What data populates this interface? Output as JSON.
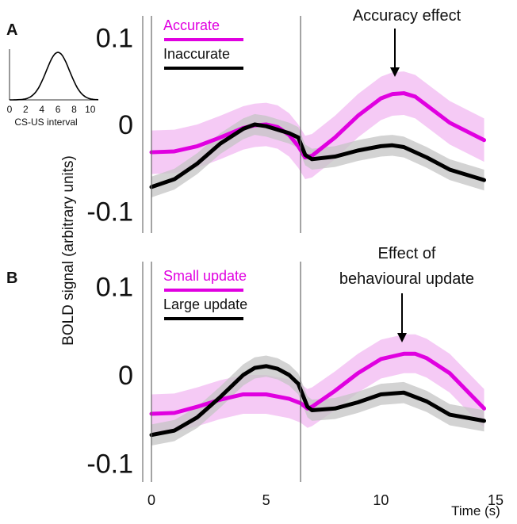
{
  "panels_label_a": "A",
  "panels_label_b": "B",
  "ylabel": "BOLD signal (arbitrary units)",
  "xlabel": "Time (s)",
  "inset": {
    "xlabel": "CS-US interval",
    "ticks": [
      "0",
      "2",
      "4",
      "6",
      "8",
      "10"
    ]
  },
  "colors": {
    "magenta": "#e000e0",
    "magenta_band": "#f2b8f2",
    "black": "#000000",
    "gray_band": "#c4c4c4"
  },
  "chart_data": [
    {
      "type": "line",
      "panel": "A",
      "annotation": "Accuracy effect",
      "yticks": [
        "0.1",
        "0",
        "-0.1"
      ],
      "ylim": [
        -0.115,
        0.115
      ],
      "xlim": [
        -0.2,
        14.5
      ],
      "vlines": [
        0,
        6.5
      ],
      "series": [
        {
          "name": "Accurate",
          "color": "#e000e0",
          "x": [
            0,
            1,
            2,
            3,
            4,
            4.5,
            5,
            5.5,
            6,
            6.4,
            6.7,
            7,
            8,
            9,
            10,
            10.5,
            11,
            11.5,
            12,
            13,
            14.5
          ],
          "values": [
            -0.032,
            -0.031,
            -0.025,
            -0.015,
            -0.004,
            -0.001,
            0.0,
            -0.003,
            -0.012,
            -0.025,
            -0.038,
            -0.036,
            -0.015,
            0.01,
            0.03,
            0.035,
            0.036,
            0.032,
            0.022,
            0.002,
            -0.018
          ],
          "band": 0.025
        },
        {
          "name": "Inaccurate",
          "color": "#000000",
          "x": [
            0,
            1,
            2,
            3,
            4,
            4.5,
            5,
            5.5,
            6,
            6.4,
            6.7,
            7,
            8,
            9,
            10,
            10.5,
            11,
            12,
            13,
            14.5
          ],
          "values": [
            -0.072,
            -0.063,
            -0.045,
            -0.022,
            -0.005,
            0.0,
            -0.002,
            -0.006,
            -0.01,
            -0.015,
            -0.035,
            -0.04,
            -0.037,
            -0.03,
            -0.025,
            -0.024,
            -0.026,
            -0.038,
            -0.052,
            -0.064
          ],
          "band": 0.012
        }
      ]
    },
    {
      "type": "line",
      "panel": "B",
      "annotation": "Effect of\nbehavioural update",
      "yticks": [
        "0.1",
        "0",
        "-0.1"
      ],
      "ylim": [
        -0.115,
        0.115
      ],
      "xlim": [
        -0.2,
        14.5
      ],
      "vlines": [
        0,
        6.5
      ],
      "series": [
        {
          "name": "Small update",
          "color": "#e000e0",
          "x": [
            0,
            1,
            2,
            3,
            4,
            5,
            6,
            6.5,
            6.8,
            7,
            8,
            9,
            10,
            11,
            11.5,
            12,
            13,
            14.5
          ],
          "values": [
            -0.044,
            -0.043,
            -0.036,
            -0.028,
            -0.022,
            -0.022,
            -0.027,
            -0.032,
            -0.038,
            -0.036,
            -0.018,
            0.002,
            0.018,
            0.024,
            0.024,
            0.019,
            0.002,
            -0.038
          ],
          "band": 0.022
        },
        {
          "name": "Large update",
          "color": "#000000",
          "x": [
            0,
            1,
            2,
            3,
            4,
            4.5,
            5,
            5.5,
            6,
            6.4,
            6.8,
            7,
            8,
            9,
            10,
            11,
            12,
            13,
            14.5
          ],
          "values": [
            -0.068,
            -0.063,
            -0.048,
            -0.025,
            0.0,
            0.008,
            0.01,
            0.007,
            0.0,
            -0.01,
            -0.036,
            -0.04,
            -0.038,
            -0.031,
            -0.022,
            -0.02,
            -0.03,
            -0.045,
            -0.052
          ],
          "band": 0.012
        }
      ]
    }
  ],
  "xticks": [
    "0",
    "5",
    "10",
    "15"
  ]
}
